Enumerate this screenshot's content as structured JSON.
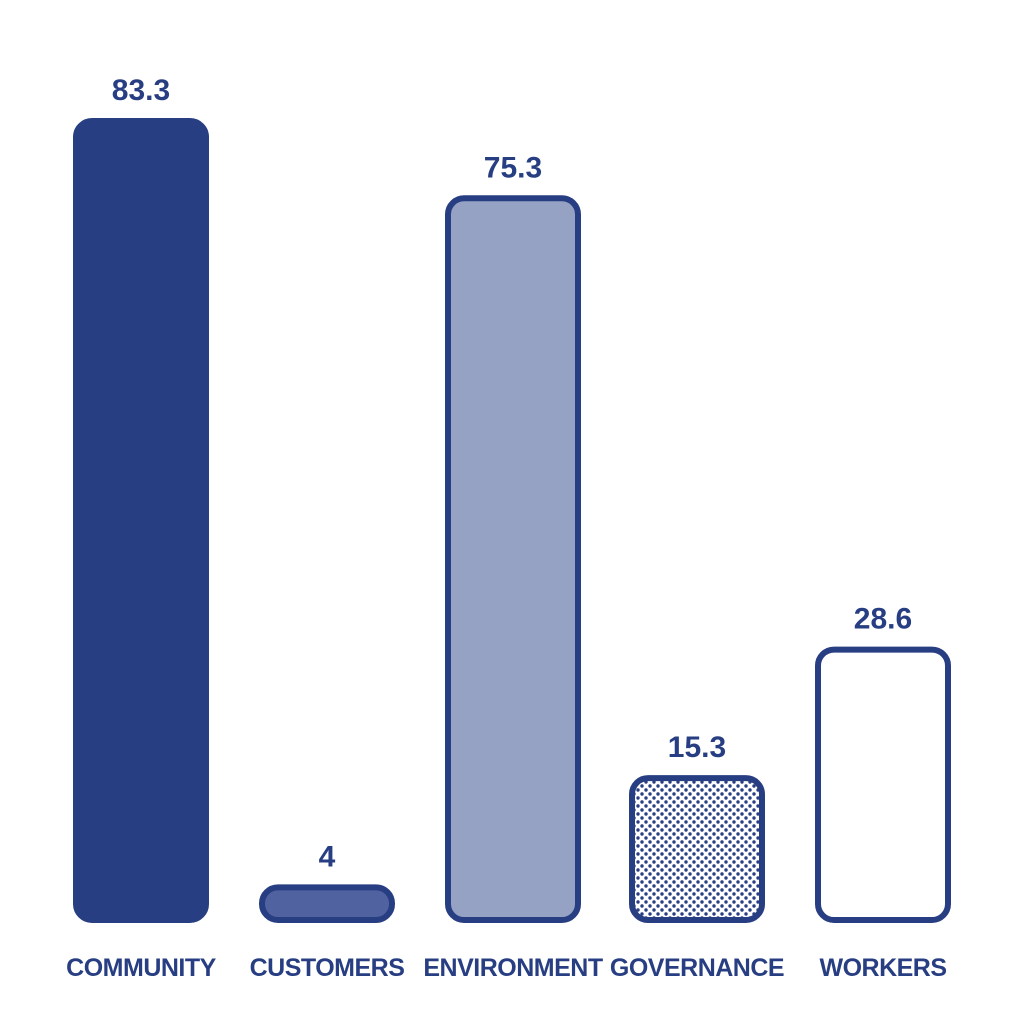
{
  "chart_data": {
    "type": "bar",
    "categories": [
      "COMMUNITY",
      "CUSTOMERS",
      "ENVIRONMENT",
      "GOVERNANCE",
      "WORKERS"
    ],
    "values": [
      83.3,
      4,
      75.3,
      15.3,
      28.6
    ],
    "value_labels": [
      "83.3",
      "4",
      "75.3",
      "15.3",
      "28.6"
    ],
    "bar_styles": [
      "solid-dark",
      "solid-medium",
      "solid-light",
      "dotted",
      "outline"
    ],
    "colors": {
      "navy": "#283e82",
      "medium": "#50629f",
      "light": "#95a2c3",
      "white": "#ffffff"
    },
    "title": "",
    "xlabel": "",
    "ylabel": "",
    "grid": false,
    "legend": "none"
  }
}
